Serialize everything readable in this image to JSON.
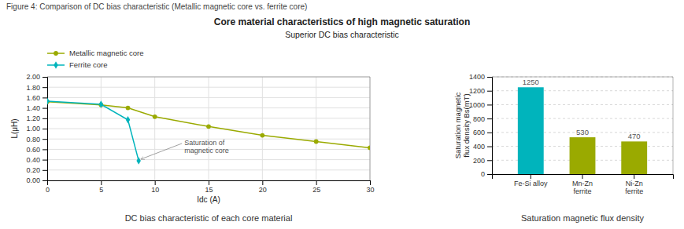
{
  "title": "Figure 4: Comparison of DC bias characteristic (Metallic magnetic core vs. ferrite core)",
  "annotations": [
    "Core material characteristics of high magnetic saturation",
    "Superior DC bias characteristic"
  ],
  "chart_data": [
    {
      "type": "line",
      "subtitle": "DC bias characteristic of each core material",
      "xlabel": "Idc (A)",
      "ylabel": "L(μH)",
      "xlim": [
        0,
        30
      ],
      "ylim": [
        0,
        2.0
      ],
      "xticks": [
        0,
        5,
        10,
        15,
        20,
        25,
        30
      ],
      "yticks": [
        {
          "value": 0.0,
          "label": "0.00"
        },
        {
          "value": 0.2,
          "label": "0.20"
        },
        {
          "value": 0.4,
          "label": "0.40"
        },
        {
          "value": 0.6,
          "label": "0.60"
        },
        {
          "value": 0.8,
          "label": "0.80"
        },
        {
          "value": 1.0,
          "label": "1.00"
        },
        {
          "value": 1.2,
          "label": "1.20"
        },
        {
          "value": 1.4,
          "label": "1.40"
        },
        {
          "value": 1.6,
          "label": "1.60"
        },
        {
          "value": 1.8,
          "label": "1.80"
        },
        {
          "value": 2.0,
          "label": "2.00"
        }
      ],
      "grid": true,
      "legend": "top-left",
      "series": [
        {
          "name": "Metallic magnetic core",
          "color": "#9aaa00",
          "marker": "circle",
          "x": [
            0,
            5,
            7.5,
            10,
            15,
            20,
            25,
            30
          ],
          "values": [
            1.52,
            1.46,
            1.4,
            1.23,
            1.04,
            0.87,
            0.75,
            0.63
          ]
        },
        {
          "name": "Ferrite core",
          "color": "#00b4bc",
          "marker": "diamond",
          "x": [
            0,
            5,
            7.5,
            8.5
          ],
          "values": [
            1.53,
            1.47,
            1.17,
            0.38
          ]
        }
      ],
      "annotations": [
        {
          "text": "Saturation of\nmagnetic core",
          "x": 8.5,
          "y": 0.38
        }
      ]
    },
    {
      "type": "bar",
      "subtitle": "Saturation magnetic flux density",
      "ylabel": "Saturation magnetic\nflux density  Bs(mT)",
      "categories": [
        "Fe-Si alloy",
        "Mn-Zn\nferrite",
        "Ni-Zn\nferrite"
      ],
      "values": [
        1250,
        530,
        470
      ],
      "colors": [
        "#00b4bc",
        "#9aaa00",
        "#9aaa00"
      ],
      "ylim": [
        0,
        1400
      ],
      "yticks": [
        0,
        200,
        400,
        600,
        800,
        1000,
        1200,
        1400
      ],
      "grid": true,
      "data_labels": true
    }
  ]
}
